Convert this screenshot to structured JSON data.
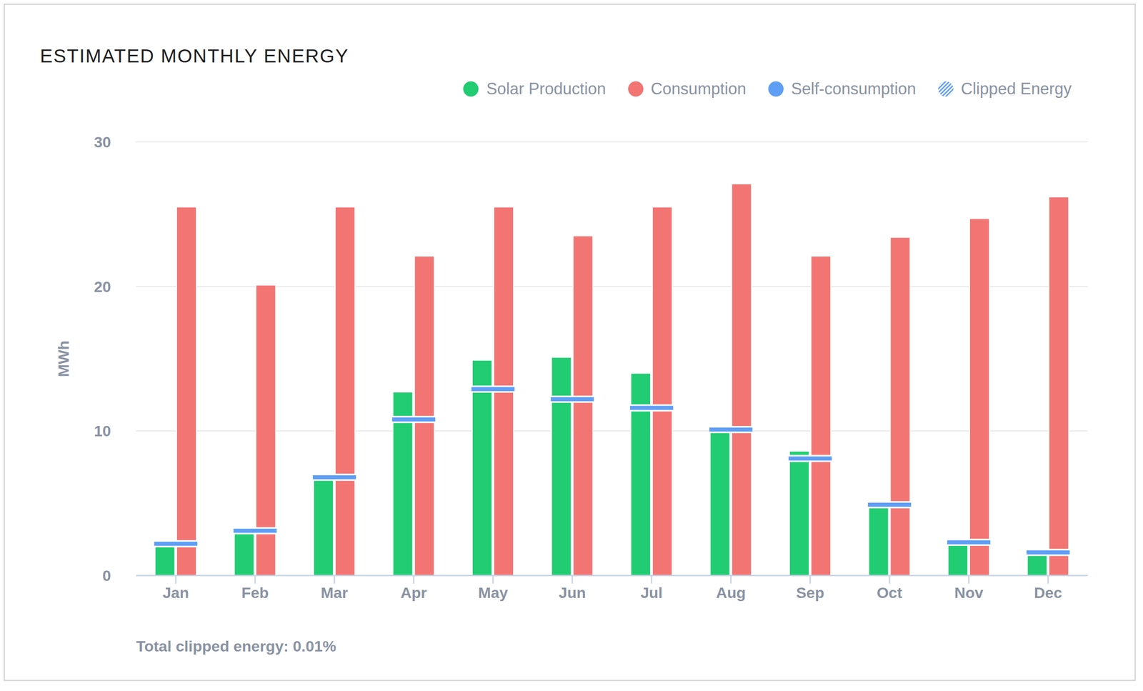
{
  "chart_data": {
    "type": "bar",
    "title": "ESTIMATED MONTHLY ENERGY",
    "ylabel": "MWh",
    "annotation": "Total clipped energy: 0.01%",
    "categories": [
      "Jan",
      "Feb",
      "Mar",
      "Apr",
      "May",
      "Jun",
      "Jul",
      "Aug",
      "Sep",
      "Oct",
      "Nov",
      "Dec"
    ],
    "series": [
      {
        "name": "Solar Production",
        "color": "#22cc72",
        "type": "bar",
        "values": [
          2.2,
          3.1,
          6.8,
          12.7,
          14.9,
          15.1,
          14.0,
          10.2,
          8.6,
          5.0,
          2.3,
          1.6
        ]
      },
      {
        "name": "Consumption",
        "color": "#f27573",
        "type": "bar",
        "values": [
          25.5,
          20.1,
          25.5,
          22.1,
          25.5,
          23.5,
          25.5,
          27.1,
          22.1,
          23.4,
          24.7,
          26.2
        ]
      },
      {
        "name": "Self-consumption",
        "color": "#5e9ef4",
        "type": "marker",
        "values": [
          2.2,
          3.1,
          6.8,
          10.8,
          12.9,
          12.2,
          11.6,
          10.1,
          8.1,
          4.9,
          2.3,
          1.6
        ]
      },
      {
        "name": "Clipped Energy",
        "color": "#5e9ef4",
        "type": "bar",
        "marker": "hatch",
        "values": [
          0,
          0,
          0,
          0,
          0,
          0,
          0,
          0,
          0,
          0,
          0,
          0
        ]
      }
    ],
    "ylim": [
      0,
      30
    ],
    "yticks": [
      0,
      10,
      20,
      30
    ],
    "grid": true
  }
}
